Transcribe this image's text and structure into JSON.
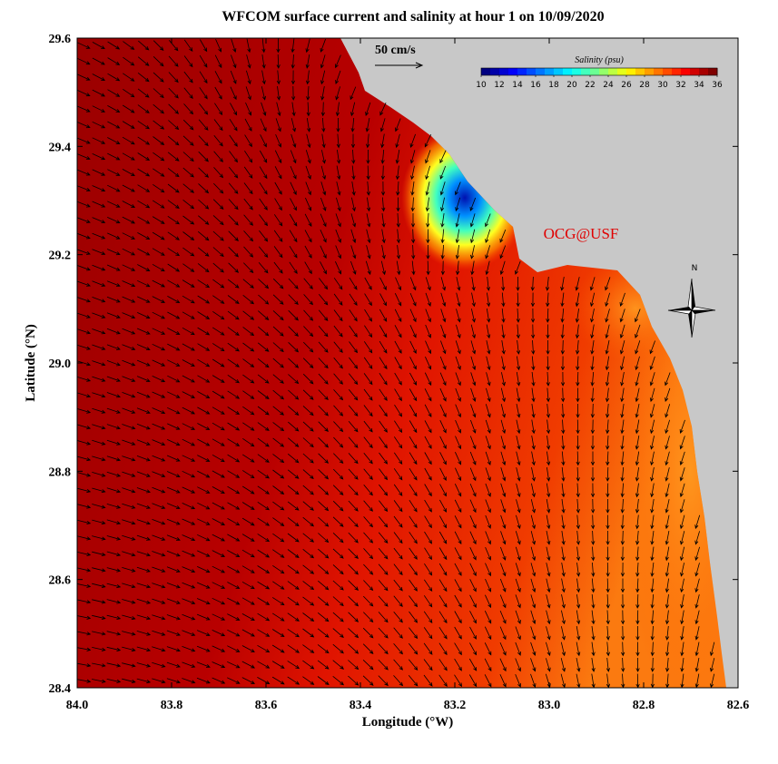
{
  "title": "WFCOM surface current and salinity at hour 1 on 10/09/2020",
  "xlabel": "Longitude (°W)",
  "ylabel": "Latitude (°N)",
  "xlim": [
    84.0,
    82.6
  ],
  "ylim": [
    28.4,
    29.6
  ],
  "xticks": [
    {
      "value": 84,
      "label": "84.0"
    },
    {
      "value": 83.8,
      "label": "83.8"
    },
    {
      "value": 83.6,
      "label": "83.6"
    },
    {
      "value": 83.4,
      "label": "83.4"
    },
    {
      "value": 83.2,
      "label": "83.2"
    },
    {
      "value": 83,
      "label": "83.0"
    },
    {
      "value": 82.8,
      "label": "82.8"
    },
    {
      "value": 82.6,
      "label": "82.6"
    }
  ],
  "yticks": [
    {
      "value": 28.4,
      "label": "28.4"
    },
    {
      "value": 28.6,
      "label": "28.6"
    },
    {
      "value": 28.8,
      "label": "28.8"
    },
    {
      "value": 29,
      "label": "29.0"
    },
    {
      "value": 29.2,
      "label": "29.2"
    },
    {
      "value": 29.4,
      "label": "29.4"
    },
    {
      "value": 29.6,
      "label": "29.6"
    }
  ],
  "colorbar": {
    "title": "Salinity (psu)",
    "lim": [
      10,
      36
    ],
    "ticks": [
      10,
      12,
      14,
      16,
      18,
      20,
      22,
      24,
      26,
      28,
      30,
      32,
      34,
      36
    ]
  },
  "scale_label": "50 cm/s",
  "credit": "OCG@USF",
  "compass_label": "N"
}
